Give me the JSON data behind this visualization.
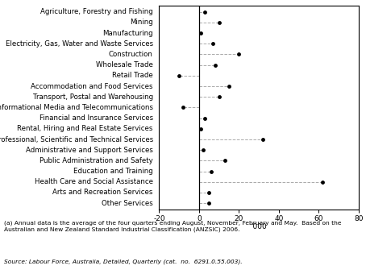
{
  "categories": [
    "Agriculture, Forestry and Fishing",
    "Mining",
    "Manufacturing",
    "Electricity, Gas, Water and Waste Services",
    "Construction",
    "Wholesale Trade",
    "Retail Trade",
    "Accommodation and Food Services",
    "Transport, Postal and Warehousing",
    "Informational Media and Telecommunications",
    "Financial and Insurance Services",
    "Rental, Hiring and Real Estate Services",
    "Professional, Scientific and Technical Services",
    "Administrative and Support Services",
    "Public Administration and Safety",
    "Education and Training",
    "Health Care and Social Assistance",
    "Arts and Recreation Services",
    "Other Services"
  ],
  "values": [
    3,
    10,
    1,
    7,
    20,
    8,
    -10,
    15,
    10,
    -8,
    3,
    1,
    32,
    2,
    13,
    6,
    62,
    5,
    5
  ],
  "xlim": [
    -20,
    80
  ],
  "xticks": [
    -20,
    0,
    20,
    40,
    60,
    80
  ],
  "xlabel": "'000",
  "dot_color": "#000000",
  "line_color": "#aaaaaa",
  "annotation_text1": "(a) Annual data is the average of the four quarters ending August, November, February and May.  Based on the\nAustralian and New Zealand Standard Industrial Classification (ANZSIC) 2006.",
  "annotation_text2": "Source: Labour Force, Australia, Detailed, Quarterly (cat.  no.  6291.0.55.003).",
  "label_fontsize": 6.2,
  "tick_fontsize": 6.5,
  "annot_fontsize": 5.4
}
